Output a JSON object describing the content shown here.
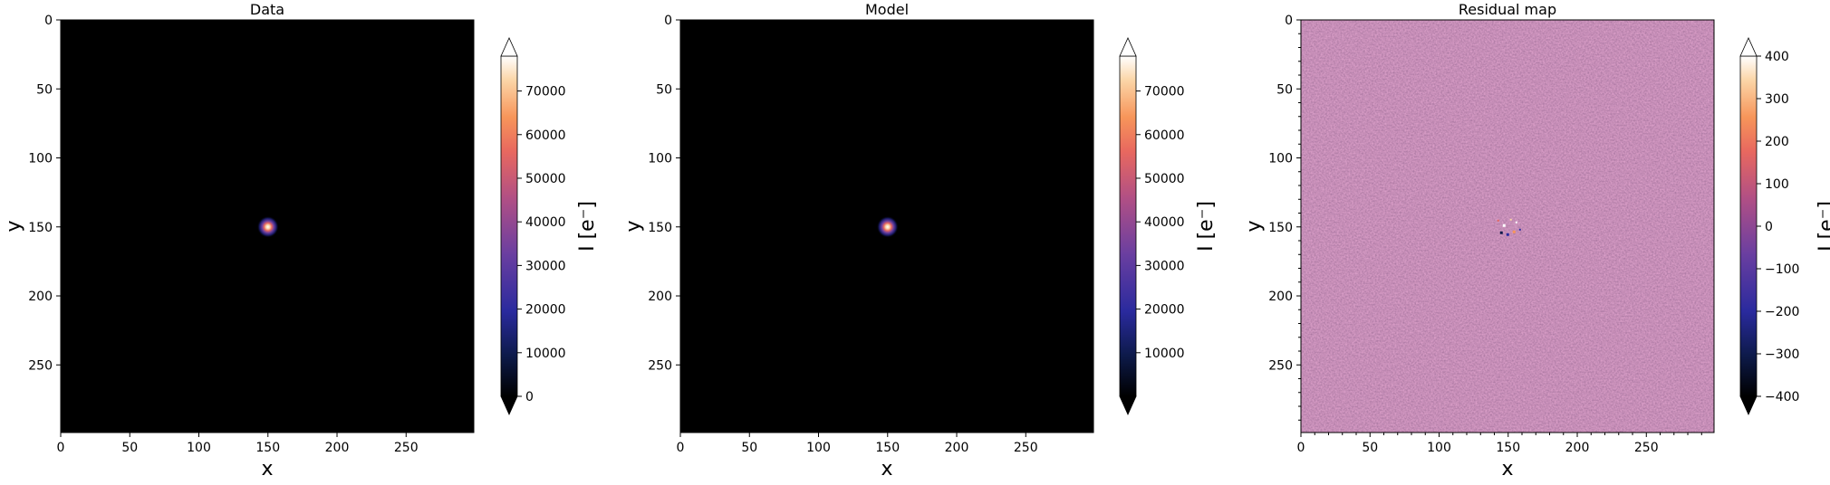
{
  "chart_data": [
    {
      "type": "heatmap",
      "title": "Data",
      "xlabel": "x",
      "ylabel": "y",
      "xlim": [
        0,
        299
      ],
      "ylim": [
        299,
        0
      ],
      "x_ticks": [
        "0",
        "50",
        "100",
        "150",
        "200",
        "250"
      ],
      "y_ticks": [
        "0",
        "50",
        "100",
        "150",
        "200",
        "250"
      ],
      "source": {
        "x": 150,
        "y": 150,
        "peak": 78000
      },
      "colorbar": {
        "label": "I [e⁻]",
        "range": [
          0,
          78000
        ],
        "ticks": [
          "0",
          "10000",
          "20000",
          "30000",
          "40000",
          "50000",
          "60000",
          "70000"
        ],
        "tick_values": [
          0,
          10000,
          20000,
          30000,
          40000,
          50000,
          60000,
          70000
        ],
        "extend": "both",
        "colormap": "magma-like"
      }
    },
    {
      "type": "heatmap",
      "title": "Model",
      "xlabel": "x",
      "ylabel": "y",
      "xlim": [
        0,
        299
      ],
      "ylim": [
        299,
        0
      ],
      "x_ticks": [
        "0",
        "50",
        "100",
        "150",
        "200",
        "250"
      ],
      "y_ticks": [
        "0",
        "50",
        "100",
        "150",
        "200",
        "250"
      ],
      "source": {
        "x": 150,
        "y": 150,
        "peak": 78000
      },
      "colorbar": {
        "label": "I [e⁻]",
        "range": [
          0,
          78000
        ],
        "ticks": [
          "10000",
          "20000",
          "30000",
          "40000",
          "50000",
          "60000",
          "70000"
        ],
        "tick_values": [
          10000,
          20000,
          30000,
          40000,
          50000,
          60000,
          70000
        ],
        "extend": "both",
        "colormap": "magma-like"
      }
    },
    {
      "type": "heatmap",
      "title": "Residual map",
      "xlabel": "x",
      "ylabel": "y",
      "xlim": [
        0,
        299
      ],
      "ylim": [
        299,
        0
      ],
      "x_ticks": [
        "0",
        "50",
        "100",
        "150",
        "200",
        "250"
      ],
      "y_ticks": [
        "0",
        "50",
        "100",
        "150",
        "200",
        "250"
      ],
      "noise_level": 0,
      "colorbar": {
        "label": "I [e⁻]",
        "range": [
          -400,
          400
        ],
        "ticks": [
          "−400",
          "−300",
          "−200",
          "−100",
          "0",
          "100",
          "200",
          "300",
          "400"
        ],
        "tick_values": [
          -400,
          -300,
          -200,
          -100,
          0,
          100,
          200,
          300,
          400
        ],
        "extend": "both",
        "colormap": "magma-like"
      }
    }
  ],
  "colors": {
    "colormap_stops": [
      "#000000",
      "#0d1a4a",
      "#2a2a9e",
      "#6b3fa0",
      "#b04f85",
      "#e8685f",
      "#f7955a",
      "#fbd6a8",
      "#ffffff"
    ],
    "background": "#000000",
    "residual_bg": "#9c4f86"
  }
}
